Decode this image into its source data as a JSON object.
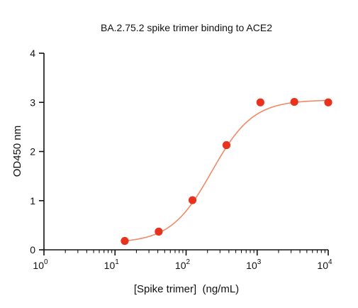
{
  "chart_data": {
    "type": "scatter",
    "title": "BA.2.75.2 spike trimer binding to ACE2",
    "xlabel": "[Spike trimer]  (ng/mL)",
    "ylabel": "OD450 nm",
    "x_scale": "log10",
    "xlim": [
      1,
      10000
    ],
    "ylim": [
      0,
      4
    ],
    "x_ticks": [
      {
        "value": 1,
        "base": "10",
        "exp": "0"
      },
      {
        "value": 10,
        "base": "10",
        "exp": "1"
      },
      {
        "value": 100,
        "base": "10",
        "exp": "2"
      },
      {
        "value": 1000,
        "base": "10",
        "exp": "3"
      },
      {
        "value": 10000,
        "base": "10",
        "exp": "4"
      }
    ],
    "y_ticks": [
      "0",
      "1",
      "2",
      "3",
      "4"
    ],
    "series": [
      {
        "x": [
          13.7,
          41.2,
          123,
          370,
          1111,
          3333,
          10000
        ],
        "y": [
          0.18,
          0.37,
          1.01,
          2.13,
          3.0,
          3.01,
          3.0
        ],
        "fit": "4PL",
        "fit_params": {
          "bottom": 0.14,
          "top": 3.05,
          "ec50": 230,
          "hill": 1.5
        }
      }
    ],
    "colors": {
      "points": "#e8321e",
      "curve": "#f08a66",
      "axes": "#111111"
    },
    "grid": false,
    "legend": "none"
  }
}
